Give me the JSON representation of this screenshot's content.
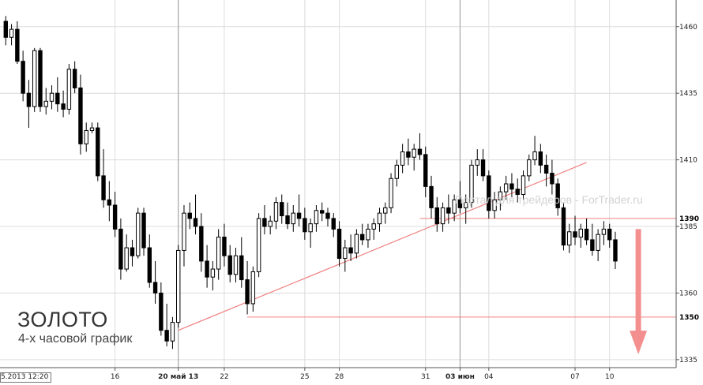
{
  "watermark": "Портал для трейдеров - ForTrader.ru",
  "title": "ЗОЛОТО",
  "subtitle": "4-х часовой график",
  "start_date_label": "5.2013 12:20",
  "colors": {
    "annotation": "#f08080",
    "arrow": "#f48f8f",
    "grid": "#dcdcdc",
    "candle": "#000000"
  },
  "chart_data": {
    "type": "candlestick",
    "ylim": [
      1332,
      1470
    ],
    "y_ticks": [
      1335,
      1360,
      1385,
      1410,
      1435,
      1460
    ],
    "x_ticks": [
      {
        "label": "16",
        "index": 19,
        "major": false
      },
      {
        "label": "20 май 13",
        "index": 30,
        "major": true
      },
      {
        "label": "22",
        "index": 38,
        "major": false
      },
      {
        "label": "25",
        "index": 52,
        "major": false
      },
      {
        "label": "28",
        "index": 58,
        "major": false
      },
      {
        "label": "31",
        "index": 73,
        "major": false
      },
      {
        "label": "03 июн",
        "index": 79,
        "major": true
      },
      {
        "label": "04",
        "index": 84,
        "major": false
      },
      {
        "label": "07",
        "index": 99,
        "major": false
      },
      {
        "label": "10",
        "index": 105,
        "major": false
      }
    ],
    "day_separators": [
      30,
      79
    ],
    "levels": [
      {
        "label": "1390",
        "value": 1388
      },
      {
        "label": "1350",
        "value": 1351
      }
    ],
    "trendline": {
      "from": [
        30,
        1346
      ],
      "to": [
        101,
        1409
      ]
    },
    "forecast_arrow": {
      "index": 110,
      "from": 1384,
      "to": 1337
    },
    "candles": [
      [
        1462,
        1464,
        1453,
        1456
      ],
      [
        1456,
        1461,
        1453,
        1459
      ],
      [
        1459,
        1462,
        1446,
        1447
      ],
      [
        1447,
        1451,
        1432,
        1435
      ],
      [
        1435,
        1440,
        1422,
        1430
      ],
      [
        1430,
        1452,
        1428,
        1451
      ],
      [
        1451,
        1452,
        1428,
        1430
      ],
      [
        1430,
        1437,
        1427,
        1432
      ],
      [
        1432,
        1438,
        1429,
        1435
      ],
      [
        1435,
        1441,
        1428,
        1431
      ],
      [
        1431,
        1436,
        1426,
        1429
      ],
      [
        1429,
        1446,
        1427,
        1444
      ],
      [
        1444,
        1447,
        1435,
        1437
      ],
      [
        1437,
        1442,
        1412,
        1416
      ],
      [
        1416,
        1424,
        1413,
        1421
      ],
      [
        1421,
        1424,
        1420,
        1422
      ],
      [
        1422,
        1424,
        1402,
        1404
      ],
      [
        1404,
        1414,
        1392,
        1395
      ],
      [
        1395,
        1402,
        1387,
        1393
      ],
      [
        1393,
        1398,
        1381,
        1384
      ],
      [
        1384,
        1388,
        1365,
        1369
      ],
      [
        1369,
        1382,
        1368,
        1377
      ],
      [
        1377,
        1380,
        1370,
        1374
      ],
      [
        1374,
        1392,
        1373,
        1390
      ],
      [
        1390,
        1392,
        1374,
        1377
      ],
      [
        1377,
        1382,
        1362,
        1364
      ],
      [
        1364,
        1372,
        1356,
        1360
      ],
      [
        1360,
        1364,
        1344,
        1346
      ],
      [
        1346,
        1356,
        1340,
        1342
      ],
      [
        1342,
        1351,
        1339,
        1349
      ],
      [
        1349,
        1378,
        1347,
        1376
      ],
      [
        1376,
        1393,
        1370,
        1390
      ],
      [
        1390,
        1394,
        1384,
        1388
      ],
      [
        1388,
        1397,
        1382,
        1385
      ],
      [
        1385,
        1390,
        1368,
        1372
      ],
      [
        1372,
        1378,
        1362,
        1366
      ],
      [
        1366,
        1372,
        1361,
        1369
      ],
      [
        1369,
        1384,
        1365,
        1381
      ],
      [
        1381,
        1386,
        1370,
        1374
      ],
      [
        1374,
        1378,
        1364,
        1367
      ],
      [
        1367,
        1377,
        1364,
        1374
      ],
      [
        1374,
        1381,
        1362,
        1365
      ],
      [
        1365,
        1372,
        1352,
        1356
      ],
      [
        1356,
        1370,
        1353,
        1368
      ],
      [
        1368,
        1390,
        1366,
        1388
      ],
      [
        1388,
        1393,
        1382,
        1385
      ],
      [
        1385,
        1389,
        1382,
        1387
      ],
      [
        1387,
        1396,
        1384,
        1394
      ],
      [
        1394,
        1397,
        1386,
        1389
      ],
      [
        1389,
        1394,
        1384,
        1386
      ],
      [
        1386,
        1393,
        1383,
        1390
      ],
      [
        1390,
        1397,
        1385,
        1388
      ],
      [
        1388,
        1392,
        1380,
        1383
      ],
      [
        1383,
        1388,
        1377,
        1386
      ],
      [
        1386,
        1393,
        1383,
        1391
      ],
      [
        1391,
        1394,
        1387,
        1390
      ],
      [
        1390,
        1392,
        1385,
        1388
      ],
      [
        1388,
        1390,
        1381,
        1384
      ],
      [
        1384,
        1387,
        1370,
        1373
      ],
      [
        1373,
        1380,
        1368,
        1377
      ],
      [
        1377,
        1382,
        1372,
        1375
      ],
      [
        1375,
        1384,
        1373,
        1382
      ],
      [
        1382,
        1386,
        1378,
        1380
      ],
      [
        1380,
        1386,
        1377,
        1384
      ],
      [
        1384,
        1388,
        1380,
        1386
      ],
      [
        1386,
        1392,
        1383,
        1390
      ],
      [
        1390,
        1394,
        1386,
        1392
      ],
      [
        1392,
        1405,
        1390,
        1403
      ],
      [
        1403,
        1410,
        1400,
        1408
      ],
      [
        1408,
        1416,
        1405,
        1413
      ],
      [
        1413,
        1418,
        1408,
        1411
      ],
      [
        1411,
        1416,
        1406,
        1414
      ],
      [
        1414,
        1420,
        1410,
        1412
      ],
      [
        1412,
        1415,
        1396,
        1400
      ],
      [
        1400,
        1404,
        1388,
        1392
      ],
      [
        1392,
        1396,
        1383,
        1386
      ],
      [
        1386,
        1394,
        1383,
        1392
      ],
      [
        1392,
        1397,
        1386,
        1390
      ],
      [
        1390,
        1397,
        1387,
        1395
      ],
      [
        1395,
        1402,
        1390,
        1392
      ],
      [
        1392,
        1397,
        1386,
        1394
      ],
      [
        1394,
        1410,
        1392,
        1408
      ],
      [
        1408,
        1414,
        1404,
        1410
      ],
      [
        1410,
        1414,
        1402,
        1404
      ],
      [
        1404,
        1406,
        1388,
        1391
      ],
      [
        1391,
        1398,
        1388,
        1395
      ],
      [
        1395,
        1400,
        1391,
        1398
      ],
      [
        1398,
        1404,
        1395,
        1401
      ],
      [
        1401,
        1405,
        1396,
        1399
      ],
      [
        1399,
        1403,
        1394,
        1397
      ],
      [
        1397,
        1406,
        1395,
        1404
      ],
      [
        1404,
        1412,
        1402,
        1410
      ],
      [
        1410,
        1419,
        1408,
        1413
      ],
      [
        1413,
        1416,
        1405,
        1408
      ],
      [
        1408,
        1412,
        1400,
        1405
      ],
      [
        1405,
        1410,
        1397,
        1401
      ],
      [
        1401,
        1403,
        1389,
        1392
      ],
      [
        1392,
        1394,
        1376,
        1378
      ],
      [
        1378,
        1386,
        1375,
        1383
      ],
      [
        1383,
        1389,
        1378,
        1381
      ],
      [
        1381,
        1386,
        1377,
        1384
      ],
      [
        1384,
        1388,
        1378,
        1380
      ],
      [
        1380,
        1386,
        1374,
        1376
      ],
      [
        1376,
        1384,
        1372,
        1382
      ],
      [
        1382,
        1387,
        1378,
        1384
      ],
      [
        1384,
        1386,
        1377,
        1380
      ],
      [
        1380,
        1383,
        1369,
        1372
      ]
    ]
  }
}
